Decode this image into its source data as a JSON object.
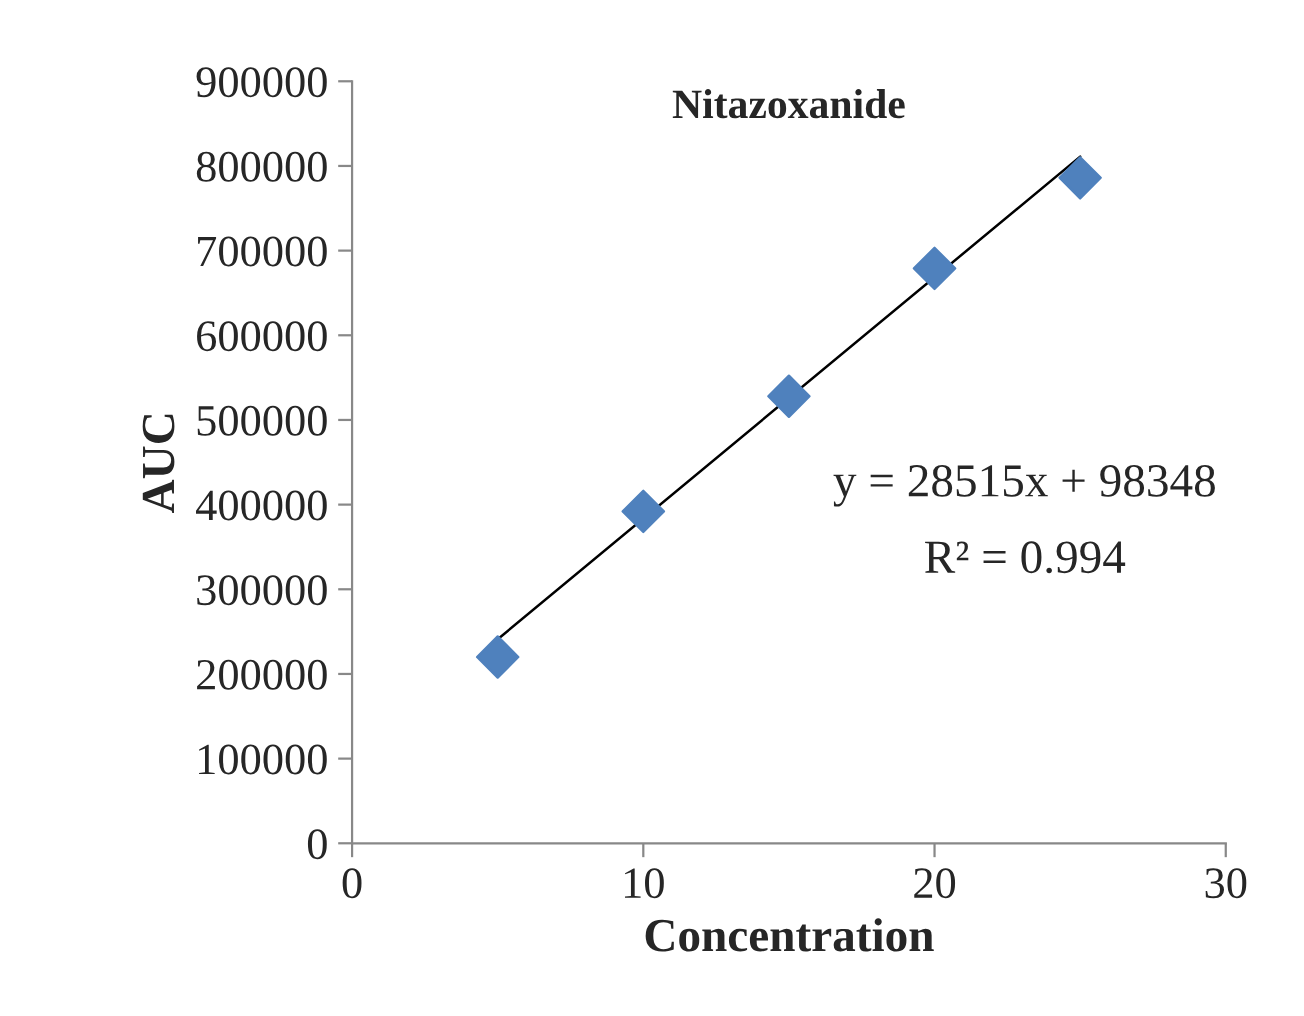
{
  "chart_data": {
    "type": "scatter",
    "title": "Nitazoxanide",
    "xlabel": "Concentration",
    "ylabel": "AUC",
    "xlim": [
      0,
      30
    ],
    "xticks": [
      0,
      10,
      20,
      30
    ],
    "ylim": [
      0,
      900000
    ],
    "yticks": [
      0,
      100000,
      200000,
      300000,
      400000,
      500000,
      600000,
      700000,
      800000,
      900000
    ],
    "grid": false,
    "legend": false,
    "marker": "diamond",
    "series": [
      {
        "color": "#4f81bd",
        "x": [
          5,
          10,
          15,
          20,
          25
        ],
        "values": [
          220000,
          392000,
          528000,
          679000,
          786000
        ]
      },
      {
        "type": "line",
        "color": "#000000",
        "x": [
          5,
          25
        ],
        "values": [
          241000,
          811000
        ],
        "marker": "none"
      }
    ],
    "annotations": [
      "y = 28515x + 98348",
      "R² = 0.994"
    ]
  }
}
